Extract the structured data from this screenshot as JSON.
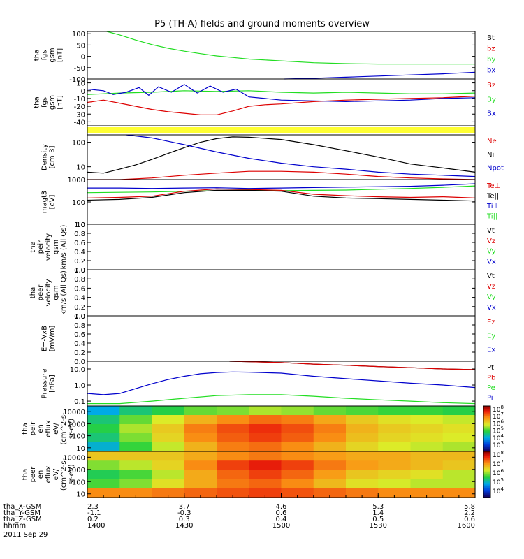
{
  "title": "P5 (TH-A) fields and ground moments overview",
  "colors": {
    "black": "#000000",
    "red": "#dd0000",
    "green": "#22dd22",
    "blue": "#0000cc",
    "yellow": "#ffff33"
  },
  "chart_data": [
    {
      "type": "line",
      "panel": "fgs-gsm-mag",
      "ylabel": [
        "tha",
        "fgs",
        "gsm",
        "[nT]"
      ],
      "yticks": [
        "100",
        "50",
        "0",
        "-50",
        "-100"
      ],
      "ylim": [
        -100,
        110
      ],
      "legend": [
        {
          "name": "Bt",
          "color": "black"
        },
        {
          "name": "bz",
          "color": "red"
        },
        {
          "name": "by",
          "color": "green"
        },
        {
          "name": "bx",
          "color": "blue"
        }
      ],
      "series": [
        {
          "name": "by",
          "color": "green",
          "x": [
            1406,
            1410,
            1415,
            1420,
            1425,
            1430,
            1435,
            1440,
            1445,
            1450,
            1500,
            1510,
            1520,
            1530,
            1540,
            1550,
            1600
          ],
          "values": [
            110,
            95,
            72,
            52,
            36,
            23,
            12,
            2,
            -5,
            -12,
            -20,
            -28,
            -32,
            -34,
            -34,
            -34,
            -34
          ]
        },
        {
          "name": "bx",
          "color": "blue",
          "x": [
            1501,
            1510,
            1520,
            1530,
            1540,
            1550,
            1600
          ],
          "values": [
            -100,
            -97,
            -92,
            -87,
            -82,
            -77,
            -70
          ]
        }
      ]
    },
    {
      "type": "line",
      "panel": "fgs-gsm-components",
      "ylabel": [
        "tha",
        "fgs",
        "gsm",
        "[nT]"
      ],
      "yticks": [
        "10",
        "0",
        "-10",
        "-20",
        "-30",
        "-40"
      ],
      "ylim": [
        -45,
        15
      ],
      "legend": [
        {
          "name": "Bz",
          "color": "red"
        },
        {
          "name": "By",
          "color": "green"
        },
        {
          "name": "Bx",
          "color": "blue"
        }
      ],
      "series": [
        {
          "name": "Bz",
          "color": "red",
          "x": [
            1400,
            1405,
            1410,
            1415,
            1420,
            1425,
            1430,
            1435,
            1440,
            1445,
            1450,
            1455,
            1500,
            1510,
            1520,
            1530,
            1540,
            1550,
            1600
          ],
          "values": [
            -15,
            -12,
            -16,
            -20,
            -24,
            -27,
            -29,
            -31,
            -31,
            -26,
            -20,
            -18,
            -17,
            -14,
            -12,
            -11,
            -10,
            -9,
            -7
          ]
        },
        {
          "name": "By",
          "color": "green",
          "x": [
            1400,
            1410,
            1420,
            1430,
            1440,
            1450,
            1500,
            1510,
            1520,
            1530,
            1540,
            1550,
            1600
          ],
          "values": [
            -5,
            -3,
            -2,
            0,
            -1,
            0,
            -2,
            -3,
            -2,
            -3,
            -4,
            -4,
            -3
          ]
        },
        {
          "name": "Bx",
          "color": "blue",
          "x": [
            1400,
            1405,
            1408,
            1412,
            1416,
            1419,
            1422,
            1426,
            1430,
            1434,
            1438,
            1442,
            1446,
            1450,
            1455,
            1500,
            1510,
            1520,
            1530,
            1540,
            1550,
            1600
          ],
          "values": [
            2,
            0,
            -5,
            -2,
            4,
            -6,
            5,
            -2,
            8,
            -3,
            6,
            -2,
            2,
            -8,
            -10,
            -12,
            -13,
            -14,
            -13,
            -12,
            -10,
            -9
          ]
        }
      ]
    },
    {
      "type": "line",
      "panel": "density",
      "ylabel": [
        "Density",
        "[cm-3]"
      ],
      "yticks": [
        "100",
        "10"
      ],
      "yscale": "log",
      "ylim": [
        3,
        200
      ],
      "legend": [
        {
          "name": "Ne",
          "color": "red"
        },
        {
          "name": "Ni",
          "color": "black"
        },
        {
          "name": "Npot",
          "color": "blue"
        }
      ],
      "series": [
        {
          "name": "Ni",
          "color": "black",
          "x": [
            1400,
            1405,
            1410,
            1415,
            1420,
            1425,
            1430,
            1435,
            1440,
            1445,
            1450,
            1500,
            1510,
            1520,
            1530,
            1540,
            1550,
            1600
          ],
          "values": [
            6,
            5.5,
            8,
            12,
            20,
            35,
            60,
            100,
            140,
            165,
            160,
            130,
            80,
            45,
            25,
            13,
            9,
            6
          ]
        },
        {
          "name": "Ne",
          "color": "red",
          "x": [
            1400,
            1410,
            1420,
            1430,
            1440,
            1450,
            1500,
            1510,
            1520,
            1530,
            1540,
            1550,
            1600
          ],
          "values": [
            3,
            3,
            3.5,
            4.5,
            5.5,
            6.5,
            6.5,
            6,
            5,
            4,
            3.5,
            3.2,
            3
          ]
        },
        {
          "name": "Npot",
          "color": "blue",
          "x": [
            1412,
            1420,
            1430,
            1440,
            1450,
            1500,
            1510,
            1520,
            1530,
            1540,
            1550,
            1600
          ],
          "values": [
            200,
            150,
            80,
            40,
            22,
            14,
            10,
            8,
            6,
            5,
            4.5,
            4
          ]
        }
      ]
    },
    {
      "type": "line",
      "panel": "temperature",
      "ylabel": [
        "magt3",
        "[eV]"
      ],
      "yticks": [
        "1000",
        "100",
        "10"
      ],
      "yscale": "log",
      "ylim": [
        10,
        1000
      ],
      "legend": [
        {
          "name": "Te⊥",
          "color": "red"
        },
        {
          "name": "Te||",
          "color": "black"
        },
        {
          "name": "Ti⊥",
          "color": "blue"
        },
        {
          "name": "Ti||",
          "color": "green"
        }
      ],
      "series": [
        {
          "name": "Ti⊥",
          "color": "blue",
          "x": [
            1400,
            1410,
            1420,
            1430,
            1440,
            1450,
            1500,
            1510,
            1520,
            1530,
            1540,
            1550,
            1600
          ],
          "values": [
            420,
            420,
            400,
            420,
            430,
            400,
            420,
            440,
            460,
            480,
            500,
            560,
            650
          ]
        },
        {
          "name": "Ti||",
          "color": "green",
          "x": [
            1400,
            1410,
            1420,
            1430,
            1440,
            1450,
            1500,
            1510,
            1520,
            1530,
            1540,
            1550,
            1600
          ],
          "values": [
            260,
            270,
            280,
            300,
            320,
            330,
            320,
            330,
            340,
            370,
            400,
            450,
            520
          ]
        },
        {
          "name": "Te⊥",
          "color": "red",
          "x": [
            1400,
            1410,
            1420,
            1430,
            1440,
            1450,
            1500,
            1510,
            1520,
            1530,
            1540,
            1550,
            1600
          ],
          "values": [
            150,
            160,
            180,
            300,
            380,
            360,
            330,
            220,
            190,
            170,
            160,
            170,
            150
          ]
        },
        {
          "name": "Te||",
          "color": "black",
          "x": [
            1400,
            1410,
            1420,
            1430,
            1440,
            1450,
            1500,
            1510,
            1520,
            1530,
            1540,
            1550,
            1600
          ],
          "values": [
            120,
            130,
            160,
            260,
            330,
            330,
            300,
            180,
            150,
            140,
            130,
            120,
            110
          ]
        }
      ]
    },
    {
      "type": "line",
      "panel": "peir-velocity",
      "ylabel": [
        "tha",
        "peir",
        "velocity",
        "gsm",
        "km/s (All Qs)"
      ],
      "yticks": [
        "1.0",
        "0.8",
        "0.6",
        "0.4",
        "0.2",
        "0.0"
      ],
      "ylim": [
        0,
        1
      ],
      "legend": [
        {
          "name": "Vt",
          "color": "black"
        },
        {
          "name": "Vz",
          "color": "red"
        },
        {
          "name": "Vy",
          "color": "green"
        },
        {
          "name": "Vx",
          "color": "blue"
        }
      ],
      "series": []
    },
    {
      "type": "line",
      "panel": "peer-velocity",
      "ylabel": [
        "tha",
        "peer",
        "velocity",
        "gsm",
        "km/s (All Qs)"
      ],
      "yticks": [
        "1.0",
        "0.8",
        "0.6",
        "0.4",
        "0.2",
        "0.0"
      ],
      "ylim": [
        0,
        1
      ],
      "legend": [
        {
          "name": "Vt",
          "color": "black"
        },
        {
          "name": "Vz",
          "color": "red"
        },
        {
          "name": "Vy",
          "color": "green"
        },
        {
          "name": "Vx",
          "color": "blue"
        }
      ],
      "series": []
    },
    {
      "type": "line",
      "panel": "electric-field",
      "ylabel": [
        "E=-VxB",
        "[mV/m]"
      ],
      "yticks": [
        "1.0",
        "0.8",
        "0.6",
        "0.4",
        "0.2",
        "0.0"
      ],
      "ylim": [
        0,
        1
      ],
      "legend": [
        {
          "name": "Ez",
          "color": "red"
        },
        {
          "name": "Ey",
          "color": "green"
        },
        {
          "name": "Ex",
          "color": "blue"
        }
      ],
      "series": []
    },
    {
      "type": "line",
      "panel": "pressure",
      "ylabel": [
        "Pressure",
        "[nPa]"
      ],
      "yticks": [
        "10.0",
        "1.0",
        "0.1"
      ],
      "yscale": "log",
      "ylim": [
        0.05,
        30
      ],
      "legend": [
        {
          "name": "Pt",
          "color": "black"
        },
        {
          "name": "Pb",
          "color": "red"
        },
        {
          "name": "Pe",
          "color": "green"
        },
        {
          "name": "Pi",
          "color": "blue"
        }
      ],
      "series": [
        {
          "name": "Pt",
          "color": "black",
          "x": [
            1444,
            1450,
            1500,
            1510,
            1520,
            1530,
            1540,
            1550,
            1600
          ],
          "values": [
            30,
            28,
            25,
            20,
            17,
            14,
            12,
            10,
            9
          ]
        },
        {
          "name": "Pb",
          "color": "red",
          "x": [
            1444,
            1450,
            1500,
            1510,
            1520,
            1530,
            1540,
            1550,
            1600
          ],
          "values": [
            30,
            28,
            25,
            20,
            17,
            14,
            12,
            10,
            9
          ]
        },
        {
          "name": "Pi",
          "color": "blue",
          "x": [
            1400,
            1405,
            1410,
            1415,
            1420,
            1425,
            1430,
            1435,
            1440,
            1445,
            1450,
            1500,
            1510,
            1520,
            1530,
            1540,
            1550,
            1600
          ],
          "values": [
            0.3,
            0.25,
            0.3,
            0.6,
            1.2,
            2.2,
            3.5,
            5,
            6,
            6.5,
            6.3,
            5.5,
            3.5,
            2.5,
            1.8,
            1.3,
            1,
            0.7
          ]
        },
        {
          "name": "Pe",
          "color": "green",
          "x": [
            1400,
            1410,
            1420,
            1430,
            1440,
            1450,
            1500,
            1510,
            1520,
            1530,
            1540,
            1550,
            1600
          ],
          "values": [
            0.07,
            0.07,
            0.1,
            0.15,
            0.22,
            0.25,
            0.25,
            0.2,
            0.15,
            0.12,
            0.1,
            0.08,
            0.07
          ]
        }
      ]
    },
    {
      "type": "heatmap",
      "panel": "peir-en-eflux",
      "ylabel": [
        "tha",
        "peir",
        "en",
        "eflux",
        "eV/",
        "(cm^2-s-",
        "sr-eV)"
      ],
      "yticks": [
        "10000",
        "1000",
        "100",
        "10"
      ],
      "yscale": "log",
      "ylim": [
        5,
        30000
      ],
      "colorbar": {
        "ticks": [
          "10^8",
          "10^7",
          "10^6",
          "10^5",
          "10^4",
          "10^3"
        ],
        "range": [
          3,
          8
        ]
      },
      "z_log10": [
        [
          4.5,
          5.0,
          5.2,
          5.5,
          5.6,
          5.8,
          5.7,
          5.5,
          5.4,
          5.3,
          5.3,
          5.2
        ],
        [
          5.0,
          5.5,
          6.0,
          6.5,
          6.8,
          7.0,
          6.9,
          6.6,
          6.3,
          6.1,
          6.0,
          5.9
        ],
        [
          5.2,
          5.8,
          6.3,
          6.9,
          7.2,
          7.4,
          7.2,
          6.9,
          6.5,
          6.3,
          6.2,
          6.1
        ],
        [
          5.0,
          5.6,
          6.2,
          6.8,
          7.1,
          7.3,
          7.1,
          6.8,
          6.4,
          6.2,
          6.1,
          6.0
        ],
        [
          4.6,
          5.3,
          5.9,
          6.5,
          6.9,
          7.0,
          6.8,
          6.5,
          6.2,
          6.0,
          5.9,
          5.8
        ]
      ]
    },
    {
      "type": "heatmap",
      "panel": "peer-en-eflux",
      "ylabel": [
        "tha",
        "peer",
        "en",
        "eflux",
        "eV/",
        "(cm^2-s-",
        "sr-eV)"
      ],
      "yticks": [
        "10000",
        "1000",
        "100",
        "10"
      ],
      "yscale": "log",
      "ylim": [
        5,
        30000
      ],
      "colorbar": {
        "ticks": [
          "10^8",
          "10^7",
          "10^6",
          "10^5",
          "10^4"
        ],
        "range": [
          3.8,
          8
        ]
      },
      "z_log10": [
        [
          6.6,
          6.6,
          6.6,
          6.8,
          7.0,
          7.1,
          7.0,
          6.9,
          6.8,
          6.8,
          6.7,
          6.7
        ],
        [
          6.0,
          6.2,
          6.5,
          7.0,
          7.4,
          7.6,
          7.4,
          7.1,
          6.9,
          6.8,
          6.7,
          6.6
        ],
        [
          5.6,
          5.8,
          6.2,
          6.8,
          7.2,
          7.4,
          7.2,
          6.9,
          6.6,
          6.5,
          6.4,
          6.2
        ],
        [
          5.8,
          6.0,
          6.4,
          6.8,
          7.1,
          7.2,
          7.0,
          6.7,
          6.4,
          6.3,
          6.2,
          6.2
        ],
        [
          7.0,
          7.0,
          7.1,
          7.2,
          7.3,
          7.4,
          7.3,
          7.2,
          7.1,
          7.0,
          7.0,
          7.0
        ]
      ]
    }
  ],
  "axis": {
    "rows": [
      {
        "label": "tha_X-GSM",
        "values": [
          "2.3",
          "3.7",
          "4.6",
          "5.3",
          "5.8"
        ]
      },
      {
        "label": "tha_Y-GSM",
        "values": [
          "-1.1",
          "-0.3",
          "0.6",
          "1.4",
          "2.2"
        ]
      },
      {
        "label": "tha_Z-GSM",
        "values": [
          "0.2",
          "0.3",
          "0.4",
          "0.5",
          "0.6"
        ]
      },
      {
        "label": "hhmm",
        "values": [
          "1400",
          "1430",
          "1500",
          "1530",
          "1600"
        ]
      }
    ],
    "date": "2011 Sep 29",
    "time_range": [
      1400,
      1600
    ]
  }
}
